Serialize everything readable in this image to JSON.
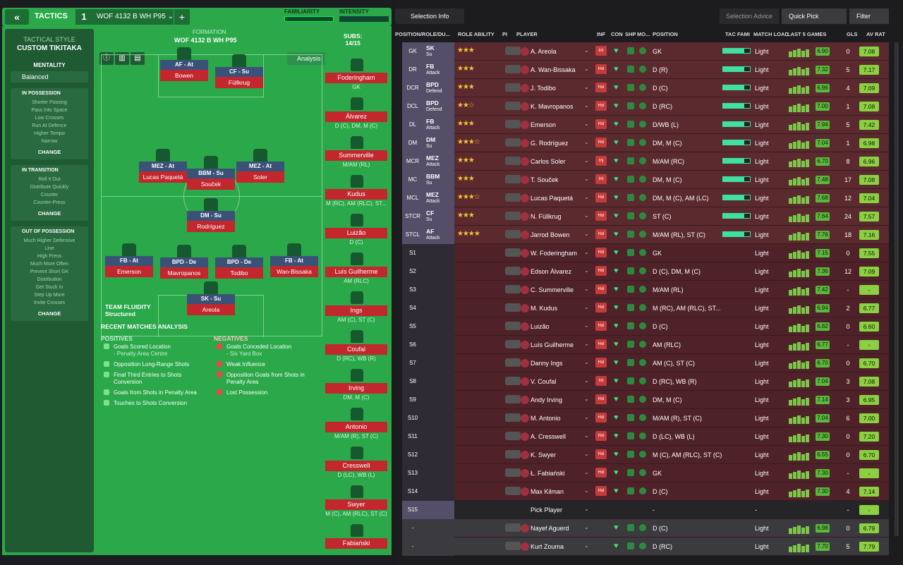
{
  "header": {
    "back_icon": "«",
    "title": "TACTICS",
    "tactic_slot": "1",
    "tactic_name": "WOF 4132 B WH P95",
    "add_icon": "+",
    "familiarity_label": "FAMILIARITY",
    "intensity_label": "INTENSITY"
  },
  "sidebar": {
    "style_label": "TACTICAL STYLE",
    "style_value": "CUSTOM TIKITAKA",
    "mentality_label": "MENTALITY",
    "mentality_value": "Balanced",
    "in_possession": {
      "title": "IN POSSESSION",
      "items": [
        "Shorter Passing",
        "Pass Into Space",
        "Low Crosses",
        "Run At Defence",
        "Higher Tempo",
        "Narrow"
      ],
      "change": "CHANGE"
    },
    "in_transition": {
      "title": "IN TRANSITION",
      "items": [
        "Roll It Out",
        "Distribute Quickly",
        "Counter",
        "Counter-Press"
      ],
      "change": "CHANGE"
    },
    "out_of_possession": {
      "title": "OUT OF POSSESSION",
      "items": [
        "Much Higher Defensive",
        "Line",
        "High Press",
        "Much More Often",
        "Prevent Short GK",
        "Distribution",
        "Get Stuck In",
        "Step Up More",
        "Invite Crosses"
      ],
      "change": "CHANGE"
    }
  },
  "formation": {
    "label": "FORMATION",
    "name": "WOF 4132 B WH P95",
    "analysis": "Analysis",
    "subs_label": "SUBS:",
    "subs_count": "14/15",
    "team_fluidity_label": "TEAM FLUIDITY",
    "team_fluidity_value": "Structured"
  },
  "pitch_players": [
    {
      "role": "AF - At",
      "name": "Bowen"
    },
    {
      "role": "CF - Su",
      "name": "Füllkrug"
    },
    {
      "role": "MEZ - At",
      "name": "Lucas Paquetá"
    },
    {
      "role": "BBM - Su",
      "name": "Souček"
    },
    {
      "role": "MEZ - At",
      "name": "Soler"
    },
    {
      "role": "DM - Su",
      "name": "Rodríguez"
    },
    {
      "role": "FB - At",
      "name": "Emerson"
    },
    {
      "role": "BPD - De",
      "name": "Mavropanos"
    },
    {
      "role": "BPD - De",
      "name": "Todibo"
    },
    {
      "role": "FB - At",
      "name": "Wan-Bissaka"
    },
    {
      "role": "SK - Su",
      "name": "Areola"
    }
  ],
  "subs": [
    {
      "name": "Foderingham",
      "pos": "GK"
    },
    {
      "name": "Álvarez",
      "pos": "D (C), DM, M (C)"
    },
    {
      "name": "Summerville",
      "pos": "M/AM (RL)"
    },
    {
      "name": "Kudus",
      "pos": "M (RC), AM (RLC), ST..."
    },
    {
      "name": "Luizão",
      "pos": "D (C)"
    },
    {
      "name": "Luís Guilherme",
      "pos": "AM (RLC)"
    },
    {
      "name": "Ings",
      "pos": "AM (C), ST (C)"
    },
    {
      "name": "Coufal",
      "pos": "D (RC), WB (R)"
    },
    {
      "name": "Irving",
      "pos": "DM, M (C)"
    },
    {
      "name": "Antonio",
      "pos": "M/AM (R), ST (C)"
    },
    {
      "name": "Cresswell",
      "pos": "D (LC), WB (L)"
    },
    {
      "name": "Swyer",
      "pos": "M (C), AM (RLC), ST (C)"
    },
    {
      "name": "Fabiański",
      "pos": ""
    }
  ],
  "analysis": {
    "recent": "RECENT MATCHES ANALYSIS",
    "positives_label": "POSITIVES",
    "negatives_label": "NEGATIVES",
    "positives": [
      "Goals Scored Location",
      "- Penalty Area Centre",
      "Opposition Long-Range Shots",
      "Final Third Entries to Shots",
      "Conversion",
      "Goals from Shots in Penalty Area",
      "Touches to Shots Conversion"
    ],
    "negatives": [
      "Goals Conceded Location",
      "- Six Yard Box",
      "Weak Influence",
      "Opposition Goals from Shots in",
      "Penalty Area",
      "Lost Possession"
    ]
  },
  "right": {
    "selection_info": "Selection Info",
    "selection_advice": "Selection Advice",
    "quick_pick": "Quick Pick",
    "filter": "Filter",
    "columns": [
      "POSITION/ROLE/DU...",
      "ROLE ABILITY",
      "PI",
      "PLAYER",
      "INF",
      "CON",
      "SHP",
      "MO...",
      "POSITION",
      "TAC FAMI",
      "MATCH LOAD",
      "LAST 5 GAMES",
      "GLS",
      "AV RAT"
    ]
  },
  "rows": [
    {
      "pos": "GK",
      "role": "SK",
      "duty": "Su",
      "stars": "★★★",
      "name": "A. Areola",
      "inf": "Int",
      "position": "GK",
      "load": "Light",
      "avr": "6.90",
      "gls": "0",
      "rat": "7.08"
    },
    {
      "pos": "DR",
      "role": "FB",
      "duty": "Attack",
      "stars": "★★★",
      "name": "A. Wan-Bissaka",
      "inf": "Hol",
      "position": "D (R)",
      "load": "Light",
      "avr": "7.32",
      "gls": "5",
      "rat": "7.17"
    },
    {
      "pos": "DCR",
      "role": "BPD",
      "duty": "Defend",
      "stars": "★★★",
      "name": "J. Todibo",
      "inf": "Hol",
      "position": "D (C)",
      "load": "Light",
      "avr": "6.96",
      "gls": "4",
      "rat": "7.09"
    },
    {
      "pos": "DCL",
      "role": "BPD",
      "duty": "Defend",
      "stars": "★★☆",
      "name": "K. Mavropanos",
      "inf": "Hol",
      "position": "D (RC)",
      "load": "Light",
      "avr": "7.00",
      "gls": "1",
      "rat": "7.08"
    },
    {
      "pos": "DL",
      "role": "FB",
      "duty": "Attack",
      "stars": "★★★",
      "name": "Emerson",
      "inf": "Hol",
      "position": "D/WB (L)",
      "load": "Light",
      "avr": "7.94",
      "gls": "5",
      "rat": "7.42"
    },
    {
      "pos": "DM",
      "role": "DM",
      "duty": "Su",
      "stars": "★★★☆",
      "name": "G. Rodríguez",
      "inf": "Hol",
      "position": "DM, M (C)",
      "load": "Light",
      "avr": "7.04",
      "gls": "1",
      "rat": "6.98"
    },
    {
      "pos": "MCR",
      "role": "MEZ",
      "duty": "Attack",
      "stars": "★★★",
      "name": "Carlos Soler",
      "inf": "Inj",
      "position": "M/AM (RC)",
      "load": "Light",
      "avr": "6.70",
      "gls": "8",
      "rat": "6.96"
    },
    {
      "pos": "MC",
      "role": "BBM",
      "duty": "Su",
      "stars": "★★★",
      "name": "T. Souček",
      "inf": "Int",
      "position": "DM, M (C)",
      "load": "Light",
      "avr": "7.48",
      "gls": "17",
      "rat": "7.08"
    },
    {
      "pos": "MCL",
      "role": "MEZ",
      "duty": "Attack",
      "stars": "★★★☆",
      "name": "Lucas Paquetá",
      "inf": "Hol",
      "position": "DM, M (C), AM (LC)",
      "load": "Light",
      "avr": "7.68",
      "gls": "12",
      "rat": "7.04"
    },
    {
      "pos": "STCR",
      "role": "CF",
      "duty": "Su",
      "stars": "★★★",
      "name": "N. Füllkrug",
      "inf": "Hol",
      "position": "ST (C)",
      "load": "Light",
      "avr": "7.64",
      "gls": "24",
      "rat": "7.57"
    },
    {
      "pos": "STCL",
      "role": "AF",
      "duty": "Attack",
      "stars": "★★★★",
      "name": "Jarrod Bowen",
      "inf": "Hol",
      "position": "M/AM (RL), ST (C)",
      "load": "Light",
      "avr": "7.76",
      "gls": "18",
      "rat": "7.16"
    },
    {
      "pos": "S1",
      "role": "",
      "duty": "",
      "stars": "",
      "name": "W. Foderingham",
      "inf": "Hol",
      "position": "GK",
      "load": "Light",
      "avr": "7.15",
      "gls": "0",
      "rat": "7.55"
    },
    {
      "pos": "S2",
      "role": "",
      "duty": "",
      "stars": "",
      "name": "Edson Álvarez",
      "inf": "Hol",
      "position": "D (C), DM, M (C)",
      "load": "Light",
      "avr": "7.36",
      "gls": "12",
      "rat": "7.09"
    },
    {
      "pos": "S3",
      "role": "",
      "duty": "",
      "stars": "",
      "name": "C. Summerville",
      "inf": "Hol",
      "position": "M/AM (RL)",
      "load": "Light",
      "avr": "7.42",
      "gls": "-",
      "rat": "-"
    },
    {
      "pos": "S4",
      "role": "",
      "duty": "",
      "stars": "",
      "name": "M. Kudus",
      "inf": "Hol",
      "position": "M (RC), AM (RLC), ST...",
      "load": "Light",
      "avr": "6.94",
      "gls": "2",
      "rat": "6.77"
    },
    {
      "pos": "S5",
      "role": "",
      "duty": "",
      "stars": "",
      "name": "Luizão",
      "inf": "Hol",
      "position": "D (C)",
      "load": "Light",
      "avr": "6.62",
      "gls": "0",
      "rat": "6.60"
    },
    {
      "pos": "S6",
      "role": "",
      "duty": "",
      "stars": "",
      "name": "Luís Guilherme",
      "inf": "Hol",
      "position": "AM (RLC)",
      "load": "Light",
      "avr": "6.77",
      "gls": "-",
      "rat": "-"
    },
    {
      "pos": "S7",
      "role": "",
      "duty": "",
      "stars": "",
      "name": "Danny Ings",
      "inf": "Hol",
      "position": "AM (C), ST (C)",
      "load": "Light",
      "avr": "6.70",
      "gls": "0",
      "rat": "6.70"
    },
    {
      "pos": "S8",
      "role": "",
      "duty": "",
      "stars": "",
      "name": "V. Coufal",
      "inf": "Int",
      "position": "D (RC), WB (R)",
      "load": "Light",
      "avr": "7.04",
      "gls": "3",
      "rat": "7.08"
    },
    {
      "pos": "S9",
      "role": "",
      "duty": "",
      "stars": "",
      "name": "Andy Irving",
      "inf": "Hol",
      "position": "DM, M (C)",
      "load": "Light",
      "avr": "7.14",
      "gls": "3",
      "rat": "6.95"
    },
    {
      "pos": "S10",
      "role": "",
      "duty": "",
      "stars": "",
      "name": "M. Antonio",
      "inf": "Hol",
      "position": "M/AM (R), ST (C)",
      "load": "Light",
      "avr": "7.04",
      "gls": "6",
      "rat": "7.00"
    },
    {
      "pos": "S11",
      "role": "",
      "duty": "",
      "stars": "",
      "name": "A. Cresswell",
      "inf": "Hol",
      "position": "D (LC), WB (L)",
      "load": "Light",
      "avr": "7.30",
      "gls": "0",
      "rat": "7.20"
    },
    {
      "pos": "S12",
      "role": "",
      "duty": "",
      "stars": "",
      "name": "K. Swyer",
      "inf": "Hol",
      "position": "M (C), AM (RLC), ST (C)",
      "load": "Light",
      "avr": "6.55",
      "gls": "0",
      "rat": "6.70"
    },
    {
      "pos": "S13",
      "role": "",
      "duty": "",
      "stars": "",
      "name": "Ł. Fabiański",
      "inf": "Hol",
      "position": "GK",
      "load": "Light",
      "avr": "7.30",
      "gls": "-",
      "rat": "-"
    },
    {
      "pos": "S14",
      "role": "",
      "duty": "",
      "stars": "",
      "name": "Max Kilman",
      "inf": "Hol",
      "position": "D (C)",
      "load": "Light",
      "avr": "7.30",
      "gls": "4",
      "rat": "7.14"
    },
    {
      "pos": "S15",
      "role": "",
      "duty": "",
      "stars": "",
      "name": "Pick Player",
      "inf": "",
      "position": "-",
      "load": "-",
      "avr": "",
      "gls": "-",
      "rat": "-"
    },
    {
      "pos": "-",
      "role": "",
      "duty": "",
      "stars": "",
      "name": "Nayef Aguerd",
      "inf": "",
      "position": "D (C)",
      "load": "Light",
      "avr": "6.98",
      "gls": "0",
      "rat": "6.79"
    },
    {
      "pos": "-",
      "role": "",
      "duty": "",
      "stars": "",
      "name": "Kurt Zouma",
      "inf": "",
      "position": "D (RC)",
      "load": "Light",
      "avr": "7.70",
      "gls": "5",
      "rat": "7.79"
    }
  ]
}
